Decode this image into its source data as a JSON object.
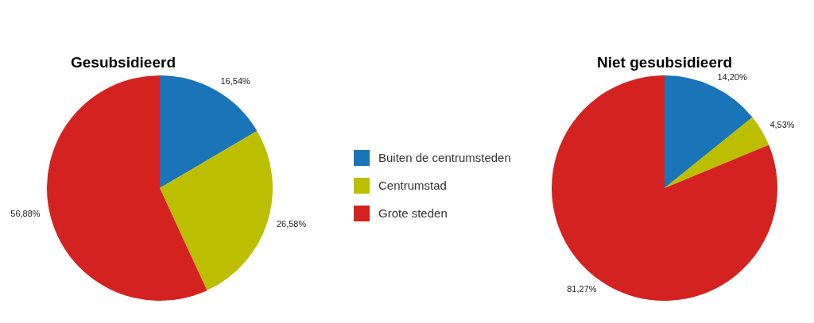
{
  "chart_data": [
    {
      "type": "pie",
      "title": "Gesubsidieerd",
      "categories": [
        "Buiten de centrumsteden",
        "Centrumstad",
        "Grote steden"
      ],
      "values": [
        16.54,
        26.58,
        56.88
      ],
      "colors": [
        "#1a74b8",
        "#bcbf00",
        "#d42220"
      ],
      "value_labels": [
        "16,54%",
        "26,58%",
        "56,88%"
      ],
      "legend": "right"
    },
    {
      "type": "pie",
      "title": "Niet gesubsidieerd",
      "categories": [
        null,
        null,
        null
      ],
      "values": [
        14.2,
        4.53,
        81.27
      ],
      "colors": [
        "#1a74b8",
        "#bcbf00",
        "#d42220"
      ],
      "value_labels": [
        "14,20%",
        "4,53%",
        "81,27%"
      ],
      "legend": false
    }
  ]
}
